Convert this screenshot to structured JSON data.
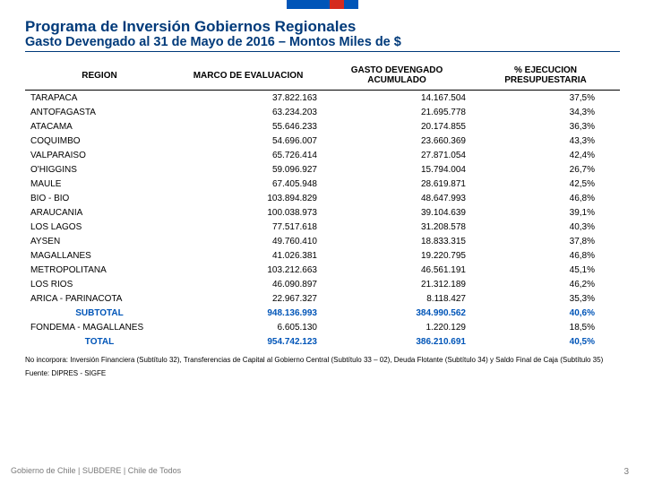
{
  "header": {
    "title": "Programa de Inversión Gobiernos Regionales",
    "subtitle": "Gasto Devengado al 31 de Mayo de 2016 – Montos Miles de $"
  },
  "table": {
    "columns": [
      "REGION",
      "MARCO DE EVALUACION",
      "GASTO DEVENGADO ACUMULADO",
      "% EJECUCION PRESUPUESTARIA"
    ],
    "rows": [
      [
        "TARAPACA",
        "37.822.163",
        "14.167.504",
        "37,5%"
      ],
      [
        "ANTOFAGASTA",
        "63.234.203",
        "21.695.778",
        "34,3%"
      ],
      [
        "ATACAMA",
        "55.646.233",
        "20.174.855",
        "36,3%"
      ],
      [
        "COQUIMBO",
        "54.696.007",
        "23.660.369",
        "43,3%"
      ],
      [
        "VALPARAISO",
        "65.726.414",
        "27.871.054",
        "42,4%"
      ],
      [
        "O'HIGGINS",
        "59.096.927",
        "15.794.004",
        "26,7%"
      ],
      [
        "MAULE",
        "67.405.948",
        "28.619.871",
        "42,5%"
      ],
      [
        "BIO - BIO",
        "103.894.829",
        "48.647.993",
        "46,8%"
      ],
      [
        "ARAUCANIA",
        "100.038.973",
        "39.104.639",
        "39,1%"
      ],
      [
        "LOS LAGOS",
        "77.517.618",
        "31.208.578",
        "40,3%"
      ],
      [
        "AYSEN",
        "49.760.410",
        "18.833.315",
        "37,8%"
      ],
      [
        "MAGALLANES",
        "41.026.381",
        "19.220.795",
        "46,8%"
      ],
      [
        "METROPOLITANA",
        "103.212.663",
        "46.561.191",
        "45,1%"
      ],
      [
        "LOS RIOS",
        "46.090.897",
        "21.312.189",
        "46,2%"
      ],
      [
        "ARICA - PARINACOTA",
        "22.967.327",
        "8.118.427",
        "35,3%"
      ]
    ],
    "subtotal": [
      "SUBTOTAL",
      "948.136.993",
      "384.990.562",
      "40,6%"
    ],
    "fondema": [
      "FONDEMA - MAGALLANES",
      "6.605.130",
      "1.220.129",
      "18,5%"
    ],
    "total": [
      "TOTAL",
      "954.742.123",
      "386.210.691",
      "40,5%"
    ]
  },
  "note": "No incorpora: Inversión Financiera (Subtítulo 32), Transferencias de Capital al Gobierno Central (Subtítulo 33 – 02), Deuda Flotante (Subtítulo 34) y Saldo Final de Caja (Subtítulo 35)",
  "source": "Fuente: DIPRES - SIGFE",
  "footer": "Gobierno de Chile | SUBDERE | Chile de Todos",
  "pagenum": "3"
}
